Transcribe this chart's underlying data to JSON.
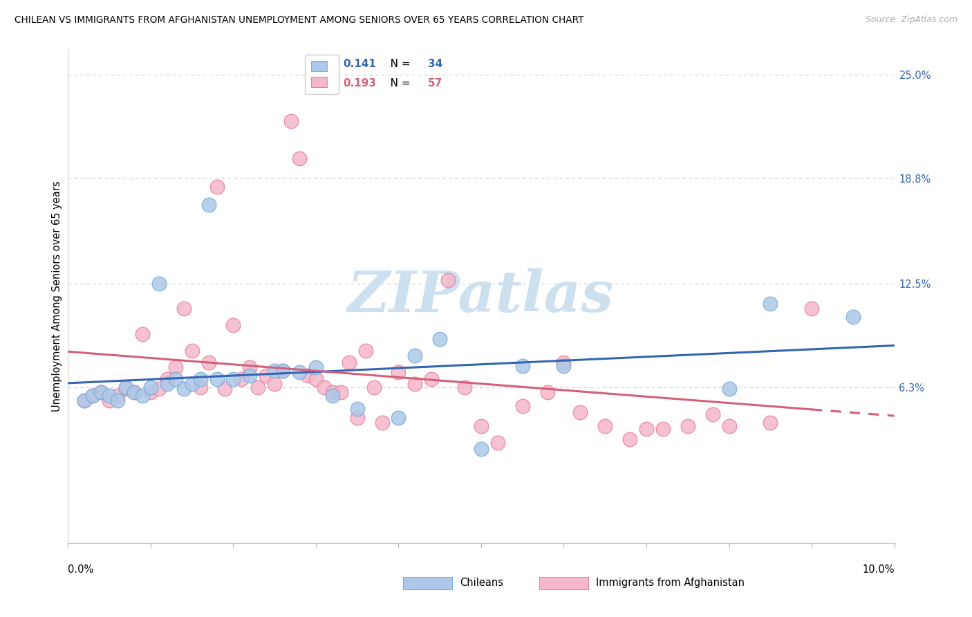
{
  "title": "CHILEAN VS IMMIGRANTS FROM AFGHANISTAN UNEMPLOYMENT AMONG SENIORS OVER 65 YEARS CORRELATION CHART",
  "source": "Source: ZipAtlas.com",
  "ylabel": "Unemployment Among Seniors over 65 years",
  "right_ytick_labels": [
    "6.3%",
    "12.5%",
    "18.8%",
    "25.0%"
  ],
  "right_ytick_vals": [
    0.063,
    0.125,
    0.188,
    0.25
  ],
  "xlim": [
    0.0,
    0.1
  ],
  "ylim": [
    -0.03,
    0.265
  ],
  "chilean_R": "0.141",
  "chilean_N": "34",
  "afghan_R": "0.193",
  "afghan_N": "57",
  "chilean_scatter_color": "#adc8e8",
  "chilean_scatter_edge": "#7aaedb",
  "afghan_scatter_color": "#f5b8ca",
  "afghan_scatter_edge": "#e8849e",
  "trend_chilean_color": "#3465b0",
  "trend_afghan_color": "#d45f7a",
  "watermark_color": "#cce0f0",
  "legend_label_color": "#3465b0",
  "chilean_x": [
    0.002,
    0.003,
    0.004,
    0.005,
    0.006,
    0.007,
    0.008,
    0.009,
    0.01,
    0.011,
    0.012,
    0.013,
    0.014,
    0.015,
    0.016,
    0.017,
    0.018,
    0.02,
    0.022,
    0.025,
    0.026,
    0.028,
    0.03,
    0.032,
    0.035,
    0.04,
    0.042,
    0.045,
    0.05,
    0.055,
    0.06,
    0.08,
    0.085,
    0.095
  ],
  "chilean_y": [
    0.055,
    0.058,
    0.06,
    0.058,
    0.055,
    0.063,
    0.06,
    0.058,
    0.063,
    0.125,
    0.065,
    0.068,
    0.062,
    0.065,
    0.068,
    0.172,
    0.068,
    0.068,
    0.07,
    0.073,
    0.073,
    0.072,
    0.075,
    0.058,
    0.05,
    0.045,
    0.082,
    0.092,
    0.026,
    0.076,
    0.076,
    0.062,
    0.113,
    0.105
  ],
  "afghan_x": [
    0.002,
    0.003,
    0.004,
    0.005,
    0.006,
    0.007,
    0.008,
    0.009,
    0.01,
    0.011,
    0.012,
    0.013,
    0.014,
    0.015,
    0.016,
    0.017,
    0.018,
    0.019,
    0.02,
    0.021,
    0.022,
    0.023,
    0.024,
    0.025,
    0.026,
    0.027,
    0.028,
    0.029,
    0.03,
    0.031,
    0.032,
    0.033,
    0.034,
    0.035,
    0.036,
    0.037,
    0.038,
    0.04,
    0.042,
    0.044,
    0.046,
    0.048,
    0.05,
    0.052,
    0.055,
    0.058,
    0.06,
    0.062,
    0.065,
    0.068,
    0.07,
    0.072,
    0.075,
    0.078,
    0.08,
    0.085,
    0.09
  ],
  "afghan_y": [
    0.055,
    0.058,
    0.06,
    0.055,
    0.058,
    0.062,
    0.06,
    0.095,
    0.06,
    0.062,
    0.068,
    0.075,
    0.11,
    0.085,
    0.063,
    0.078,
    0.183,
    0.062,
    0.1,
    0.068,
    0.075,
    0.063,
    0.07,
    0.065,
    0.073,
    0.222,
    0.2,
    0.07,
    0.068,
    0.063,
    0.06,
    0.06,
    0.078,
    0.045,
    0.085,
    0.063,
    0.042,
    0.072,
    0.065,
    0.068,
    0.127,
    0.063,
    0.04,
    0.03,
    0.052,
    0.06,
    0.078,
    0.048,
    0.04,
    0.032,
    0.038,
    0.038,
    0.04,
    0.047,
    0.04,
    0.042,
    0.11
  ]
}
